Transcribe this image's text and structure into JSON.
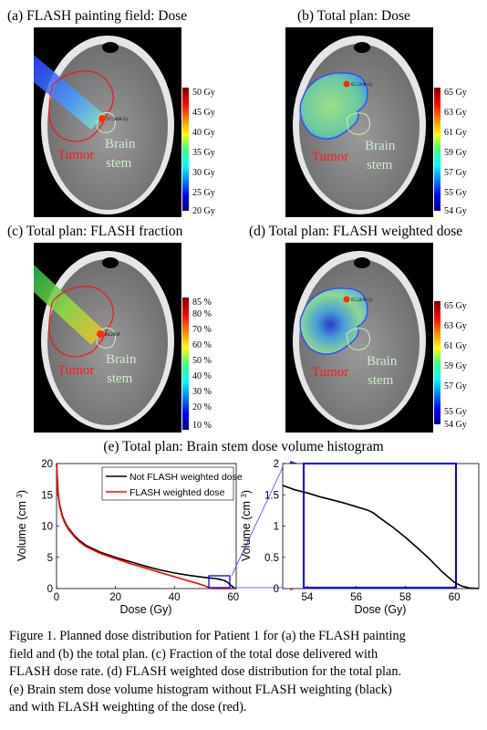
{
  "panels": [
    {
      "title": "(a) FLASH painting field: Dose",
      "colorbar_labels": [
        "50 Gy",
        "45 Gy",
        "40 Gy",
        "35 Gy",
        "30 Gy",
        "25 Gy",
        "20 Gy"
      ],
      "point_label": "57.3868 Gy",
      "tumor_label": "Tumor",
      "stem_label_1": "Brain",
      "stem_label_2": "stem"
    },
    {
      "title": "(b) Total plan: Dose",
      "colorbar_labels": [
        "65 Gy",
        "63 Gy",
        "61 Gy",
        "59 Gy",
        "57 Gy",
        "55 Gy",
        "54 Gy"
      ],
      "point_label": "65.2208 Gy",
      "tumor_label": "Tumor",
      "stem_label_1": "Brain",
      "stem_label_2": "stem"
    },
    {
      "title": "(c) Total plan: FLASH fraction",
      "colorbar_labels": [
        "85 %",
        "80 %",
        "70 %",
        "60 %",
        "50 %",
        "40 %",
        "30 %",
        "20 %",
        "10 %"
      ],
      "point_label": "84.2809",
      "tumor_label": "Tumor",
      "stem_label_1": "Brain",
      "stem_label_2": "stem"
    },
    {
      "title": "(d) Total plan: FLASH weighted dose",
      "colorbar_labels": [
        "65 Gy",
        "63 Gy",
        "61 Gy",
        "59 Gy",
        "57 Gy",
        "55 Gy",
        "54 Gy"
      ],
      "point_label": "65.2208 Gy",
      "tumor_label": "Tumor",
      "stem_label_1": "Brain",
      "stem_label_2": "stem"
    }
  ],
  "histogram_title": "(e) Total plan: Brain stem dose volume histogram",
  "chart_data": [
    {
      "type": "line",
      "xlabel": "Dose (Gy)",
      "ylabel": "Volume (cm3)",
      "xlim": [
        0,
        61
      ],
      "ylim": [
        0,
        20
      ],
      "xticks": [
        "0",
        "20",
        "40",
        "60"
      ],
      "yticks": [
        "0",
        "5",
        "10",
        "15",
        "20"
      ],
      "legend_position": "top-right",
      "series": [
        {
          "name": "Not FLASH weighted dose",
          "color": "#000000",
          "x": [
            0,
            0.5,
            1,
            2,
            3,
            4,
            6,
            8,
            10,
            15,
            20,
            25,
            30,
            35,
            40,
            45,
            50,
            52,
            54,
            55,
            56,
            57,
            58,
            59,
            60,
            60.5,
            61
          ],
          "y": [
            20,
            15.5,
            13.5,
            11.6,
            10.5,
            9.7,
            8.5,
            7.6,
            6.9,
            5.8,
            5.0,
            4.3,
            3.6,
            3.0,
            2.5,
            2.1,
            1.8,
            1.7,
            1.6,
            1.5,
            1.4,
            1.3,
            1.0,
            0.6,
            0.2,
            0.05,
            0
          ]
        },
        {
          "name": "FLASH weighted dose",
          "color": "#ff0000",
          "x": [
            0,
            0.5,
            1,
            2,
            3,
            4,
            6,
            8,
            10,
            15,
            20,
            25,
            30,
            35,
            40,
            45,
            48,
            50,
            51,
            52,
            53,
            54,
            60
          ],
          "y": [
            20,
            15.2,
            13.3,
            11.4,
            10.3,
            9.5,
            8.3,
            7.4,
            6.7,
            5.6,
            4.8,
            4.0,
            3.3,
            2.6,
            1.9,
            1.2,
            0.8,
            0.5,
            0.3,
            0.1,
            0.02,
            0,
            0
          ]
        }
      ]
    },
    {
      "type": "line",
      "xlabel": "Dose (Gy)",
      "ylabel": "Volume (cm3)",
      "xlim": [
        53,
        61
      ],
      "ylim": [
        0,
        2
      ],
      "xticks": [
        "54",
        "56",
        "58",
        "60"
      ],
      "yticks": [
        "0",
        "0.5",
        "1",
        "1.5",
        "2"
      ],
      "series": [
        {
          "name": "Not FLASH weighted dose",
          "color": "#000000",
          "x": [
            53,
            53.5,
            54,
            54.5,
            55,
            55.5,
            56,
            56.5,
            56.7,
            57,
            57.5,
            58,
            58.5,
            59,
            59.5,
            60,
            60.3,
            60.6,
            61
          ],
          "y": [
            1.65,
            1.58,
            1.53,
            1.47,
            1.42,
            1.37,
            1.31,
            1.25,
            1.21,
            1.12,
            0.98,
            0.82,
            0.65,
            0.47,
            0.27,
            0.1,
            0.04,
            0.01,
            0
          ]
        }
      ]
    }
  ],
  "caption_lines": [
    "Figure 1. Planned dose distribution for Patient 1 for (a) the FLASH painting",
    "field and (b) the total plan. (c) Fraction of the total dose delivered with",
    "FLASH dose rate. (d) FLASH weighted dose distribution for the total plan.",
    "(e) Brain stem dose volume histogram without FLASH weighting (black)",
    "and with FLASH weighting of the dose (red)."
  ]
}
